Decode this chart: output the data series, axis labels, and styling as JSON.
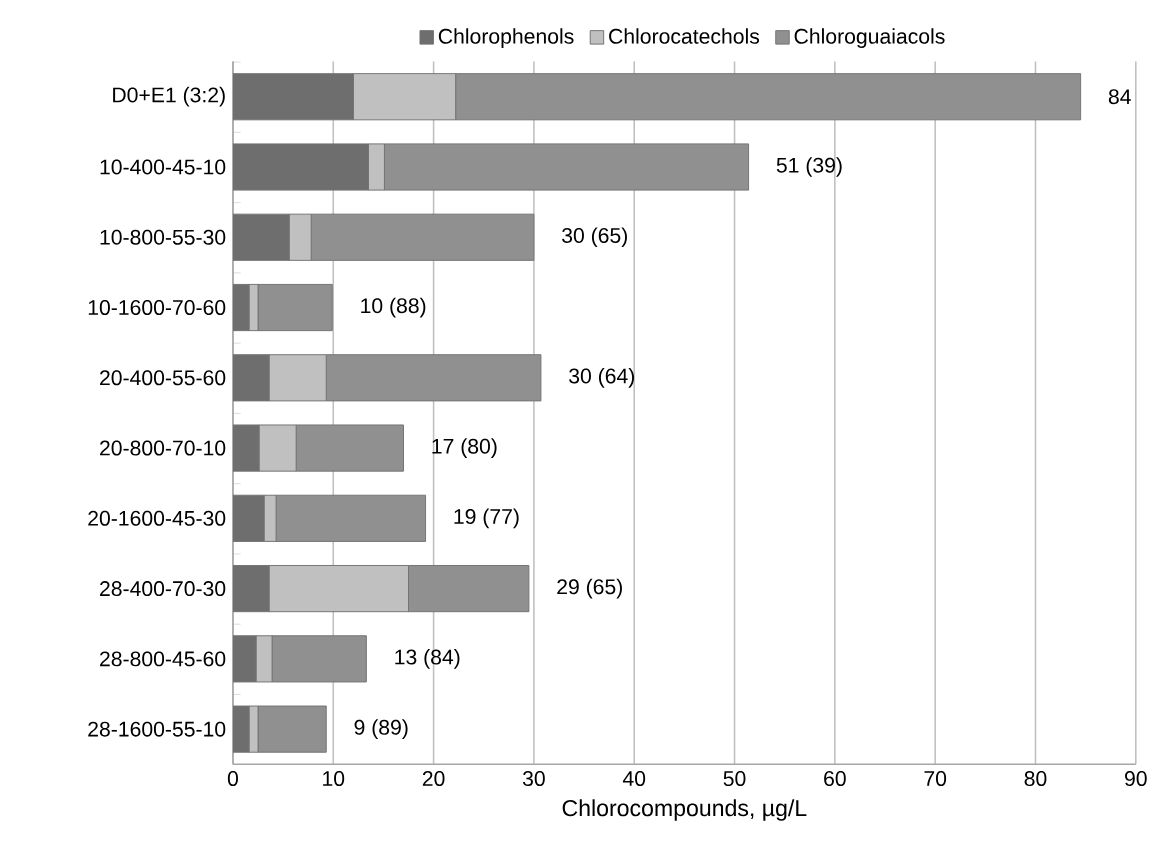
{
  "chart_data": {
    "type": "bar",
    "orientation": "horizontal",
    "stacked": true,
    "categories": [
      "D0+E1 (3:2)",
      "10-400-45-10",
      "10-800-55-30",
      "10-1600-70-60",
      "20-400-55-60",
      "20-800-70-10",
      "20-1600-45-30",
      "28-400-70-30",
      "28-800-45-60",
      "28-1600-55-10"
    ],
    "series": [
      {
        "name": "Chlorophenols",
        "color": "#6e6e6e",
        "values": [
          12.0,
          13.5,
          5.6,
          1.6,
          3.6,
          2.6,
          3.1,
          3.6,
          2.3,
          1.6
        ]
      },
      {
        "name": "Chlorocatechols",
        "color": "#c0c0c0",
        "values": [
          10.2,
          1.6,
          2.2,
          0.9,
          5.7,
          3.7,
          1.2,
          13.9,
          1.6,
          0.9
        ]
      },
      {
        "name": "Chloroguaiacols",
        "color": "#909090",
        "values": [
          62.3,
          36.3,
          22.2,
          7.4,
          21.4,
          10.7,
          14.9,
          12.0,
          9.4,
          6.8
        ]
      }
    ],
    "totals": [
      "84",
      "51 (39)",
      "30 (65)",
      "10 (88)",
      "30 (64)",
      "17 (80)",
      "19 (77)",
      "29 (65)",
      "13 (84)",
      "9 (89)"
    ],
    "xlabel": "Chlorocompounds, µg/L",
    "xlim": [
      0,
      90
    ],
    "xticks": [
      0,
      10,
      20,
      30,
      40,
      50,
      60,
      70,
      80,
      90
    ],
    "grid": "x",
    "legend": "top"
  }
}
